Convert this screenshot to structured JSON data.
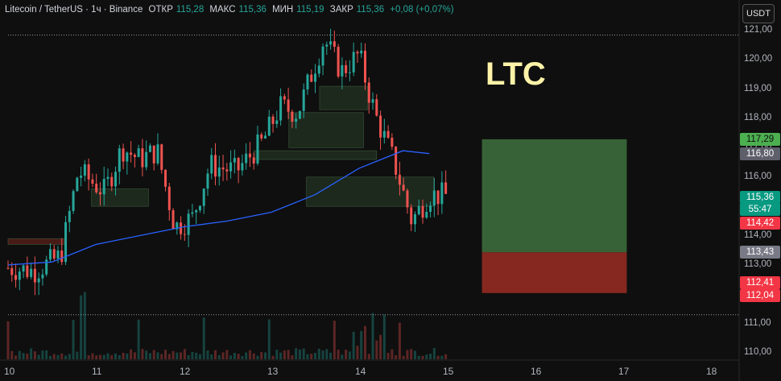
{
  "header": {
    "symbol": "Litecoin / TetherUS · 1ч · Binance",
    "open_label": "ОТКР",
    "open": "115,28",
    "high_label": "МАКС",
    "high": "115,36",
    "low_label": "МИН",
    "low": "115,19",
    "close_label": "ЗАКР",
    "close": "115,36",
    "change": "+0,08 (+0,07%)"
  },
  "currency_button": "USDT",
  "overlay_text": "LTC",
  "price_tags": {
    "tp": "117,29",
    "level_a": "116,80",
    "last_price": "115,36",
    "countdown": "55:47",
    "level_b": "114,42",
    "level_c": "113,43",
    "level_d": "112,41",
    "stop": "112,04"
  },
  "colors": {
    "up": "#26a69a",
    "down": "#ef5350",
    "ma": "#2962ff",
    "profit_zone": "#3c6b3c",
    "loss_zone": "#8e2a22",
    "background": "#0f0f0f"
  },
  "chart_data": {
    "type": "candlestick",
    "y_axis": {
      "ticks": [
        "121,00",
        "120,00",
        "119,00",
        "118,00",
        "117,00",
        "116,00",
        "115,00",
        "114,00",
        "113,00",
        "112,00",
        "111,00",
        "110,00"
      ],
      "range": [
        109.6,
        121.3
      ]
    },
    "x_axis": {
      "ticks": [
        "10",
        "11",
        "12",
        "13",
        "14",
        "15",
        "16",
        "17",
        "18"
      ],
      "range": [
        10,
        18.5
      ]
    },
    "grid": false,
    "ohlc_anchor": [
      [
        10.0,
        112.9
      ],
      [
        10.3,
        112.8
      ],
      [
        10.6,
        113.3
      ],
      [
        10.8,
        116.2
      ],
      [
        11.1,
        115.5
      ],
      [
        11.3,
        117.0
      ],
      [
        11.5,
        116.6
      ],
      [
        11.7,
        116.9
      ],
      [
        11.9,
        114.3
      ],
      [
        12.1,
        114.6
      ],
      [
        12.3,
        116.4
      ],
      [
        12.6,
        116.2
      ],
      [
        12.9,
        117.2
      ],
      [
        13.1,
        118.4
      ],
      [
        13.3,
        118.2
      ],
      [
        13.6,
        120.7
      ],
      [
        13.8,
        119.6
      ],
      [
        14.0,
        120.2
      ],
      [
        14.1,
        119.0
      ],
      [
        14.2,
        118.0
      ],
      [
        14.4,
        116.5
      ],
      [
        14.6,
        114.5
      ],
      [
        14.8,
        115.4
      ],
      [
        15.0,
        115.36
      ]
    ],
    "moving_average": [
      [
        10.0,
        113.0
      ],
      [
        10.5,
        113.1
      ],
      [
        11.0,
        113.7
      ],
      [
        11.5,
        114.0
      ],
      [
        12.0,
        114.3
      ],
      [
        12.5,
        114.5
      ],
      [
        13.0,
        114.8
      ],
      [
        13.5,
        115.4
      ],
      [
        14.0,
        116.3
      ],
      [
        14.5,
        116.9
      ],
      [
        14.8,
        116.8
      ]
    ],
    "position": {
      "entry": 113.43,
      "take_profit": 117.29,
      "stop_loss": 112.04,
      "x_from": 15.4,
      "x_to": 17.05
    },
    "levels": {
      "upper_dotted": 120.85,
      "lower_dotted": 111.3
    }
  }
}
